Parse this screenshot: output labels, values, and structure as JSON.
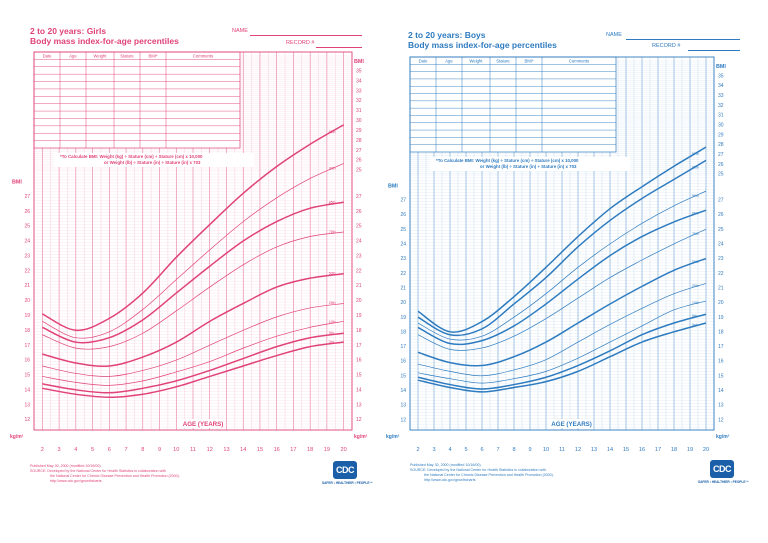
{
  "panels": [
    {
      "id": "girls",
      "color": "#e0427a",
      "title_line1": "2 to 20 years: Girls",
      "title_line2": "Body mass index-for-age percentiles",
      "name_label": "NAME",
      "record_label": "RECORD #",
      "table_headers": [
        "Date",
        "Age",
        "Weight",
        "Stature",
        "BMI*",
        "Comments"
      ],
      "bmi_formula_line1": "*To Calculate BMI: Weight (kg) ÷ Stature (cm) ÷ Stature (cm) x 10,000",
      "bmi_formula_line2": "or Weight (lb) ÷ Stature (in) ÷ Stature (in) x 703",
      "footnote_lines": [
        "Published May 30, 2000 (modified 10/16/00).",
        "SOURCE: Developed by the National Center for Health Statistics in collaboration with",
        "the National Center for Chronic Disease Prevention and Health Promotion (2000).",
        "http://www.cdc.gov/growthcharts"
      ],
      "logo_text": "CDC",
      "tagline": "SAFER • HEALTHIER • PEOPLE™"
    },
    {
      "id": "boys",
      "color": "#2e7bbf",
      "title_line1": "2 to 20 years: Boys",
      "title_line2": "Body mass index-for-age percentiles",
      "name_label": "NAME",
      "record_label": "RECORD #",
      "table_headers": [
        "Date",
        "Age",
        "Weight",
        "Stature",
        "BMI*",
        "Comments"
      ],
      "bmi_formula_line1": "*To Calculate BMI: Weight (kg) ÷ Stature (cm) ÷ Stature (cm) x 10,000",
      "bmi_formula_line2": "or Weight (lb) ÷ Stature (in) ÷ Stature (in) x 703",
      "footnote_lines": [
        "Published May 30, 2000 (modified 10/16/00).",
        "SOURCE: Developed by the National Center for Health Statistics in collaboration with",
        "the National Center for Chronic Disease Prevention and Health Promotion (2000).",
        "http://www.cdc.gov/growthcharts"
      ],
      "logo_text": "CDC",
      "tagline": "SAFER • HEALTHIER • PEOPLE™"
    }
  ],
  "chart_data": [
    {
      "type": "line",
      "title": "2 to 20 years: Girls Body mass index-for-age percentiles",
      "xlabel": "AGE (YEARS)",
      "ylabel": "BMI",
      "yunit": "kg/m²",
      "xlim": [
        1.5,
        20.5
      ],
      "x_ticks": [
        2,
        3,
        4,
        5,
        6,
        7,
        8,
        9,
        10,
        11,
        12,
        13,
        14,
        15,
        16,
        17,
        18,
        19,
        20
      ],
      "ylim_lower_scale": [
        11.3,
        28.7
      ],
      "y_ticks_lower": [
        12,
        13,
        14,
        15,
        16,
        17,
        18,
        19,
        20,
        21,
        22,
        23,
        24,
        25,
        26,
        27
      ],
      "ylim_upper_scale": [
        24.3,
        36.7
      ],
      "y_ticks_upper": [
        25,
        26,
        27,
        28,
        29,
        30,
        31,
        32,
        33,
        34,
        35
      ],
      "grid": true,
      "x": [
        2,
        4,
        6,
        8,
        10,
        12,
        14,
        16,
        18,
        20
      ],
      "series": [
        {
          "name": "95th",
          "values": [
            19.1,
            18.0,
            18.8,
            20.5,
            22.9,
            25.1,
            27.2,
            29.0,
            30.5,
            31.8
          ]
        },
        {
          "name": "90th",
          "values": [
            18.6,
            17.5,
            17.9,
            19.4,
            21.4,
            23.4,
            25.3,
            26.9,
            28.2,
            29.2
          ]
        },
        {
          "name": "85th",
          "values": [
            18.2,
            17.2,
            17.5,
            18.7,
            20.5,
            22.3,
            24.0,
            25.3,
            26.2,
            26.6
          ]
        },
        {
          "name": "75th",
          "values": [
            17.7,
            16.8,
            16.9,
            17.8,
            19.3,
            20.9,
            22.4,
            23.6,
            24.3,
            24.6
          ]
        },
        {
          "name": "50th",
          "values": [
            16.4,
            15.8,
            15.6,
            16.2,
            17.2,
            18.6,
            19.8,
            20.9,
            21.5,
            21.8
          ]
        },
        {
          "name": "25th",
          "values": [
            15.6,
            15.1,
            14.9,
            15.3,
            16.0,
            17.0,
            18.0,
            18.9,
            19.5,
            19.8
          ]
        },
        {
          "name": "10th",
          "values": [
            14.9,
            14.5,
            14.3,
            14.6,
            15.2,
            15.9,
            16.8,
            17.6,
            18.2,
            18.6
          ]
        },
        {
          "name": "5th",
          "values": [
            14.4,
            14.0,
            13.8,
            14.1,
            14.6,
            15.3,
            16.1,
            16.9,
            17.5,
            17.8
          ]
        },
        {
          "name": "3rd",
          "values": [
            14.1,
            13.7,
            13.5,
            13.7,
            14.2,
            14.9,
            15.6,
            16.3,
            16.9,
            17.2
          ]
        }
      ]
    },
    {
      "type": "line",
      "title": "2 to 20 years: Boys Body mass index-for-age percentiles",
      "xlabel": "AGE (YEARS)",
      "ylabel": "BMI",
      "yunit": "kg/m²",
      "xlim": [
        1.5,
        20.5
      ],
      "x_ticks": [
        2,
        3,
        4,
        5,
        6,
        7,
        8,
        9,
        10,
        11,
        12,
        13,
        14,
        15,
        16,
        17,
        18,
        19,
        20
      ],
      "ylim_lower_scale": [
        11.3,
        28.7
      ],
      "y_ticks_lower": [
        12,
        13,
        14,
        15,
        16,
        17,
        18,
        19,
        20,
        21,
        22,
        23,
        24,
        25,
        26,
        27
      ],
      "ylim_upper_scale": [
        24.3,
        36.7
      ],
      "y_ticks_upper": [
        25,
        26,
        27,
        28,
        29,
        30,
        31,
        32,
        33,
        34,
        35
      ],
      "grid": true,
      "x": [
        2,
        4,
        6,
        8,
        10,
        12,
        14,
        16,
        18,
        20
      ],
      "series": [
        {
          "name": "97th",
          "values": [
            19.4,
            18.0,
            18.7,
            20.4,
            22.4,
            24.5,
            26.4,
            27.9,
            29.3,
            30.6
          ]
        },
        {
          "name": "95th",
          "values": [
            19.0,
            17.8,
            18.2,
            19.9,
            21.7,
            23.8,
            25.6,
            27.1,
            28.4,
            29.7
          ]
        },
        {
          "name": "90th",
          "values": [
            18.6,
            17.5,
            17.7,
            19.0,
            20.6,
            22.4,
            24.0,
            25.4,
            26.6,
            27.6
          ]
        },
        {
          "name": "85th",
          "values": [
            18.3,
            17.2,
            17.4,
            18.4,
            19.9,
            21.6,
            23.2,
            24.5,
            25.5,
            26.3
          ]
        },
        {
          "name": "75th",
          "values": [
            17.8,
            16.8,
            16.9,
            17.7,
            18.9,
            20.3,
            21.7,
            22.9,
            24.0,
            25.0
          ]
        },
        {
          "name": "50th",
          "values": [
            16.6,
            15.9,
            15.7,
            16.3,
            17.3,
            18.6,
            19.9,
            21.1,
            22.2,
            23.0
          ]
        },
        {
          "name": "25th",
          "values": [
            15.8,
            15.3,
            15.0,
            15.4,
            16.1,
            17.3,
            18.5,
            19.6,
            20.6,
            21.3
          ]
        },
        {
          "name": "10th",
          "values": [
            15.2,
            14.8,
            14.5,
            14.8,
            15.3,
            16.2,
            17.3,
            18.4,
            19.5,
            20.1
          ]
        },
        {
          "name": "5th",
          "values": [
            14.9,
            14.4,
            14.1,
            14.4,
            14.9,
            15.7,
            16.7,
            17.8,
            18.6,
            19.2
          ]
        },
        {
          "name": "3rd",
          "values": [
            14.7,
            14.2,
            13.9,
            14.2,
            14.6,
            15.3,
            16.3,
            17.3,
            18.0,
            18.6
          ]
        }
      ]
    }
  ]
}
